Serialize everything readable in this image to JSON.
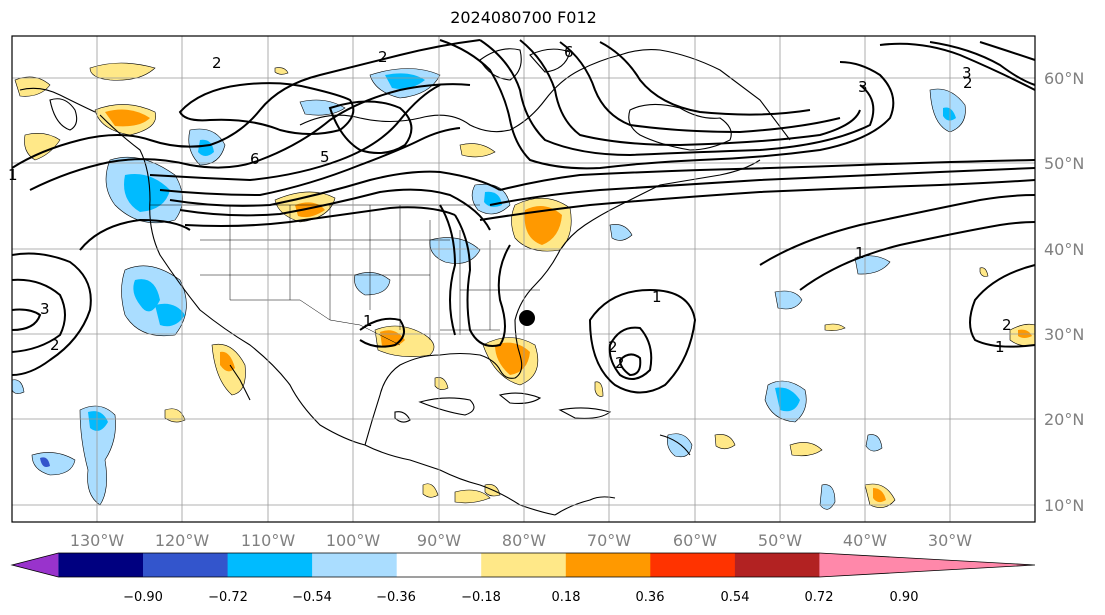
{
  "title": "2024080700 F012",
  "colorbar": {
    "ticks": [
      "−0.90",
      "−0.72",
      "−0.54",
      "−0.36",
      "−0.18",
      "0.18",
      "0.36",
      "0.54",
      "0.72",
      "0.90"
    ],
    "colors": [
      "#9933cc",
      "#000080",
      "#3355cc",
      "#00bbff",
      "#aaddff",
      "#ffffff",
      "#ffe888",
      "#ff9900",
      "#ff3300",
      "#b22222",
      "#ff88aa"
    ],
    "under_color": "#9933cc",
    "over_color": "#ff88aa"
  },
  "lon_labels": [
    "130°W",
    "120°W",
    "110°W",
    "100°W",
    "90°W",
    "80°W",
    "70°W",
    "60°W",
    "50°W",
    "40°W",
    "30°W"
  ],
  "lat_labels": [
    "60°N",
    "50°N",
    "40°N",
    "30°N",
    "20°N",
    "10°N"
  ],
  "contour_labels": [
    "2",
    "6",
    "5",
    "1",
    "6",
    "3",
    "2",
    "3",
    "2",
    "1",
    "2",
    "3",
    "2",
    "1",
    "1",
    "2",
    "2",
    "1"
  ],
  "marker": "storm-center-dot"
}
